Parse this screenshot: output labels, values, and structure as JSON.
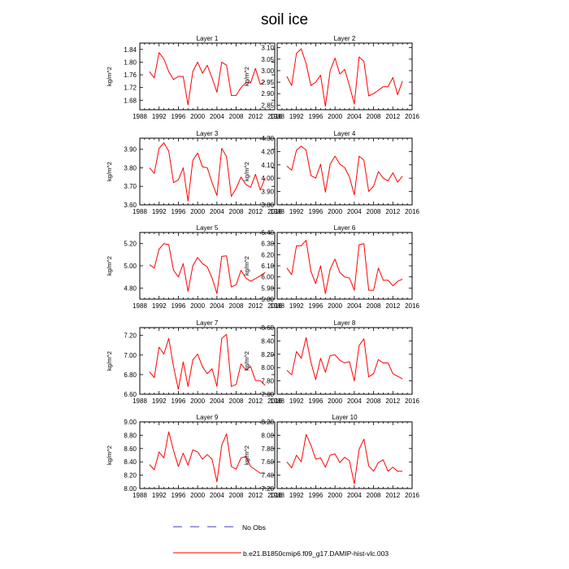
{
  "figure": {
    "title": "soil ice",
    "legend": {
      "obs_label": "No Obs",
      "model_label": "b.e21.B1850cmip6.f09_g17.DAMIP-hist-vlc.003",
      "obs_color": "#3a3ad0",
      "model_color": "#ff0000"
    }
  },
  "chart_data": [
    {
      "type": "line",
      "title": "Layer 1",
      "ylabel": "kg/m^2",
      "x": [
        1990,
        1991,
        1992,
        1993,
        1994,
        1995,
        1996,
        1997,
        1998,
        1999,
        2000,
        2001,
        2002,
        2003,
        2004,
        2005,
        2006,
        2007,
        2008,
        2009,
        2010,
        2011,
        2012,
        2013,
        2014
      ],
      "series": [
        {
          "color": "#ff0000",
          "values": [
            1.77,
            1.75,
            1.83,
            1.81,
            1.77,
            1.745,
            1.755,
            1.755,
            1.665,
            1.77,
            1.8,
            1.765,
            1.79,
            1.75,
            1.705,
            1.8,
            1.79,
            1.695,
            1.695,
            1.72,
            1.735,
            1.735,
            1.78,
            1.73,
            1.74
          ]
        }
      ],
      "xlim": [
        1988,
        2016
      ],
      "ylim": [
        1.65,
        1.86
      ],
      "xticks": [
        1988,
        1992,
        1996,
        2000,
        2004,
        2008,
        2012,
        2016
      ],
      "yticks": [
        "1.68",
        "1.72",
        "1.76",
        "1.80",
        "1.84"
      ]
    },
    {
      "type": "line",
      "title": "Layer 2",
      "ylabel": "kg/m^2",
      "x": [
        1990,
        1991,
        1992,
        1993,
        1994,
        1995,
        1996,
        1997,
        1998,
        1999,
        2000,
        2001,
        2002,
        2003,
        2004,
        2005,
        2006,
        2007,
        2008,
        2009,
        2010,
        2011,
        2012,
        2013,
        2014
      ],
      "series": [
        {
          "color": "#ff0000",
          "values": [
            2.975,
            2.935,
            3.075,
            3.095,
            3.03,
            2.935,
            2.95,
            2.98,
            2.845,
            3.0,
            3.055,
            2.985,
            3.005,
            2.935,
            2.855,
            3.06,
            3.04,
            2.89,
            2.9,
            2.915,
            2.93,
            2.93,
            2.97,
            2.895,
            2.955
          ]
        }
      ],
      "xlim": [
        1988,
        2016
      ],
      "ylim": [
        2.83,
        3.12
      ],
      "xticks": [
        1988,
        1992,
        1996,
        2000,
        2004,
        2008,
        2012,
        2016
      ],
      "yticks": [
        "2.85",
        "2.90",
        "2.95",
        "3.00",
        "3.05",
        "3.10"
      ]
    },
    {
      "type": "line",
      "title": "Layer 3",
      "ylabel": "kg/m^2",
      "x": [
        1990,
        1991,
        1992,
        1993,
        1994,
        1995,
        1996,
        1997,
        1998,
        1999,
        2000,
        2001,
        2002,
        2003,
        2004,
        2005,
        2006,
        2007,
        2008,
        2009,
        2010,
        2011,
        2012,
        2013,
        2014
      ],
      "series": [
        {
          "color": "#ff0000",
          "values": [
            3.8,
            3.77,
            3.905,
            3.935,
            3.89,
            3.72,
            3.735,
            3.8,
            3.62,
            3.84,
            3.88,
            3.805,
            3.8,
            3.72,
            3.65,
            3.905,
            3.86,
            3.645,
            3.69,
            3.75,
            3.71,
            3.695,
            3.765,
            3.68,
            3.745
          ]
        }
      ],
      "xlim": [
        1988,
        2016
      ],
      "ylim": [
        3.6,
        3.96
      ],
      "xticks": [
        1988,
        1992,
        1996,
        2000,
        2004,
        2008,
        2012,
        2016
      ],
      "yticks": [
        "3.60",
        "3.70",
        "3.80",
        "3.90"
      ]
    },
    {
      "type": "line",
      "title": "Layer 4",
      "ylabel": "kg/m^2",
      "x": [
        1990,
        1991,
        1992,
        1993,
        1994,
        1995,
        1996,
        1997,
        1998,
        1999,
        2000,
        2001,
        2002,
        2003,
        2004,
        2005,
        2006,
        2007,
        2008,
        2009,
        2010,
        2011,
        2012,
        2013,
        2014
      ],
      "series": [
        {
          "color": "#ff0000",
          "values": [
            4.09,
            4.06,
            4.21,
            4.24,
            4.21,
            4.02,
            4.0,
            4.105,
            3.895,
            4.105,
            4.165,
            4.105,
            4.08,
            4.01,
            3.875,
            4.165,
            4.135,
            3.9,
            3.94,
            4.05,
            4.0,
            3.98,
            4.04,
            3.97,
            4.015
          ]
        }
      ],
      "xlim": [
        1988,
        2016
      ],
      "ylim": [
        3.8,
        4.3
      ],
      "xticks": [
        1988,
        1992,
        1996,
        2000,
        2004,
        2008,
        2012,
        2016
      ],
      "yticks": [
        "3.80",
        "3.90",
        "4.00",
        "4.10",
        "4.20",
        "4.30"
      ]
    },
    {
      "type": "line",
      "title": "Layer 5",
      "ylabel": "kg/m^2",
      "x": [
        1990,
        1991,
        1992,
        1993,
        1994,
        1995,
        1996,
        1997,
        1998,
        1999,
        2000,
        2001,
        2002,
        2003,
        2004,
        2005,
        2006,
        2007,
        2008,
        2009,
        2010,
        2011,
        2012,
        2013,
        2014
      ],
      "series": [
        {
          "color": "#ff0000",
          "values": [
            5.01,
            4.98,
            5.15,
            5.2,
            5.19,
            4.96,
            4.9,
            5.02,
            4.77,
            5.0,
            5.075,
            5.02,
            4.99,
            4.89,
            4.75,
            5.085,
            5.09,
            4.81,
            4.83,
            4.96,
            4.89,
            4.86,
            4.885,
            4.91,
            4.94
          ]
        }
      ],
      "xlim": [
        1988,
        2016
      ],
      "ylim": [
        4.7,
        5.3
      ],
      "xticks": [
        1988,
        1992,
        1996,
        2000,
        2004,
        2008,
        2012,
        2016
      ],
      "yticks": [
        "4.80",
        "5.00",
        "5.20"
      ]
    },
    {
      "type": "line",
      "title": "Layer 6",
      "ylabel": "kg/m^2",
      "x": [
        1990,
        1991,
        1992,
        1993,
        1994,
        1995,
        1996,
        1997,
        1998,
        1999,
        2000,
        2001,
        2002,
        2003,
        2004,
        2005,
        2006,
        2007,
        2008,
        2009,
        2010,
        2011,
        2012,
        2013,
        2014
      ],
      "series": [
        {
          "color": "#ff0000",
          "values": [
            6.08,
            6.02,
            6.28,
            6.28,
            6.33,
            6.05,
            5.94,
            6.1,
            5.85,
            6.07,
            6.16,
            6.04,
            6.0,
            5.99,
            5.88,
            6.29,
            6.3,
            5.88,
            5.88,
            6.08,
            5.97,
            5.97,
            5.92,
            5.96,
            5.98
          ]
        }
      ],
      "xlim": [
        1988,
        2016
      ],
      "ylim": [
        5.8,
        6.4
      ],
      "xticks": [
        1988,
        1992,
        1996,
        2000,
        2004,
        2008,
        2012,
        2016
      ],
      "yticks": [
        "5.80",
        "5.90",
        "6.00",
        "6.10",
        "6.20",
        "6.30",
        "6.40"
      ]
    },
    {
      "type": "line",
      "title": "Layer 7",
      "ylabel": "kg/m^2",
      "x": [
        1990,
        1991,
        1992,
        1993,
        1994,
        1995,
        1996,
        1997,
        1998,
        1999,
        2000,
        2001,
        2002,
        2003,
        2004,
        2005,
        2006,
        2007,
        2008,
        2009,
        2010,
        2011,
        2012,
        2013,
        2014
      ],
      "series": [
        {
          "color": "#ff0000",
          "values": [
            6.83,
            6.77,
            7.08,
            7.01,
            7.17,
            6.88,
            6.65,
            6.93,
            6.68,
            6.95,
            7.01,
            6.88,
            6.81,
            6.86,
            6.68,
            7.17,
            7.21,
            6.68,
            6.7,
            6.91,
            6.85,
            6.88,
            6.74,
            6.74,
            6.69
          ]
        }
      ],
      "xlim": [
        1988,
        2016
      ],
      "ylim": [
        6.6,
        7.28
      ],
      "xticks": [
        1988,
        1992,
        1996,
        2000,
        2004,
        2008,
        2012,
        2016
      ],
      "yticks": [
        "6.60",
        "6.80",
        "7.00",
        "7.20"
      ]
    },
    {
      "type": "line",
      "title": "Layer 8",
      "ylabel": "kg/m^2",
      "x": [
        1990,
        1991,
        1992,
        1993,
        1994,
        1995,
        1996,
        1997,
        1998,
        1999,
        2000,
        2001,
        2002,
        2003,
        2004,
        2005,
        2006,
        2007,
        2008,
        2009,
        2010,
        2011,
        2012,
        2013,
        2014
      ],
      "series": [
        {
          "color": "#ff0000",
          "values": [
            7.96,
            7.89,
            8.24,
            8.14,
            8.45,
            8.08,
            7.82,
            8.14,
            7.93,
            8.18,
            8.19,
            8.11,
            8.07,
            8.09,
            7.8,
            8.33,
            8.43,
            7.86,
            7.91,
            8.12,
            8.07,
            8.07,
            7.91,
            7.87,
            7.83
          ]
        }
      ],
      "xlim": [
        1988,
        2016
      ],
      "ylim": [
        7.6,
        8.6
      ],
      "xticks": [
        1988,
        1992,
        1996,
        2000,
        2004,
        2008,
        2012,
        2016
      ],
      "yticks": [
        "7.60",
        "7.80",
        "8.00",
        "8.20",
        "8.40",
        "8.60"
      ]
    },
    {
      "type": "line",
      "title": "Layer 9",
      "ylabel": "kg/m^2",
      "x": [
        1990,
        1991,
        1992,
        1993,
        1994,
        1995,
        1996,
        1997,
        1998,
        1999,
        2000,
        2001,
        2002,
        2003,
        2004,
        2005,
        2006,
        2007,
        2008,
        2009,
        2010,
        2011,
        2012,
        2013,
        2014
      ],
      "series": [
        {
          "color": "#ff0000",
          "values": [
            8.36,
            8.28,
            8.55,
            8.46,
            8.85,
            8.57,
            8.33,
            8.53,
            8.35,
            8.58,
            8.55,
            8.44,
            8.51,
            8.44,
            8.1,
            8.65,
            8.82,
            8.33,
            8.29,
            8.46,
            8.48,
            8.33,
            8.28,
            8.23,
            8.23
          ]
        }
      ],
      "xlim": [
        1988,
        2016
      ],
      "ylim": [
        8.0,
        9.0
      ],
      "xticks": [
        1988,
        1992,
        1996,
        2000,
        2004,
        2008,
        2012,
        2016
      ],
      "yticks": [
        "8.00",
        "8.20",
        "8.40",
        "8.60",
        "8.80",
        "9.00"
      ]
    },
    {
      "type": "line",
      "title": "Layer 10",
      "ylabel": "kg/m^2",
      "x": [
        1990,
        1991,
        1992,
        1993,
        1994,
        1995,
        1996,
        1997,
        1998,
        1999,
        2000,
        2001,
        2002,
        2003,
        2004,
        2005,
        2006,
        2007,
        2008,
        2009,
        2010,
        2011,
        2012,
        2013,
        2014
      ],
      "series": [
        {
          "color": "#ff0000",
          "values": [
            7.6,
            7.51,
            7.7,
            7.6,
            8.01,
            7.85,
            7.64,
            7.66,
            7.52,
            7.7,
            7.72,
            7.59,
            7.67,
            7.62,
            7.27,
            7.79,
            7.94,
            7.54,
            7.46,
            7.59,
            7.63,
            7.46,
            7.52,
            7.46,
            7.46
          ]
        }
      ],
      "xlim": [
        1988,
        2016
      ],
      "ylim": [
        7.2,
        8.2
      ],
      "xticks": [
        1988,
        1992,
        1996,
        2000,
        2004,
        2008,
        2012,
        2016
      ],
      "yticks": [
        "7.20",
        "7.40",
        "7.60",
        "7.80",
        "8.00",
        "8.20"
      ]
    }
  ]
}
